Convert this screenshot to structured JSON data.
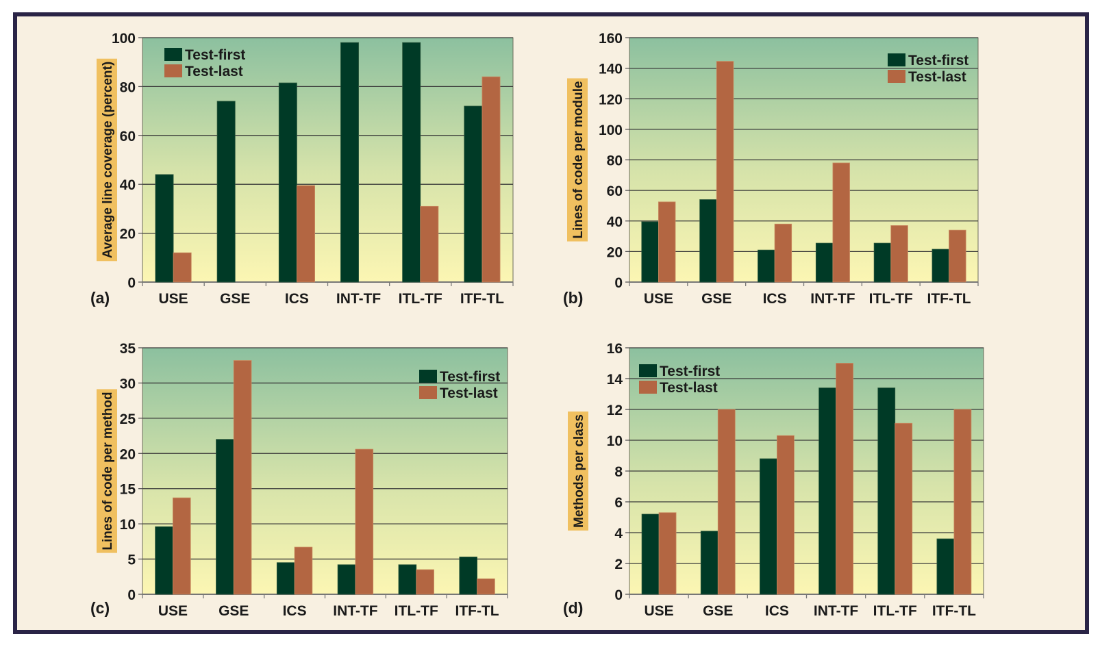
{
  "colors": {
    "test_first": "#003a26",
    "test_last": "#b36642",
    "plot_top": "#8cc09f",
    "plot_bottom": "#fcf6b3",
    "ylabel_bg": "#f0c060",
    "grid": "#3a3a3a"
  },
  "chart_data": [
    {
      "type": "bar",
      "panel": "(a)",
      "title": "",
      "xlabel": "",
      "ylabel": "Average line coverage (percent)",
      "categories": [
        "USE",
        "GSE",
        "ICS",
        "INT-TF",
        "ITL-TF",
        "ITF-TL"
      ],
      "ylim": [
        0,
        100
      ],
      "yticks": [
        0,
        20,
        40,
        60,
        80,
        100
      ],
      "grid": true,
      "legend_position": "top-left",
      "series": [
        {
          "name": "Test-first",
          "values": [
            44,
            74,
            81.5,
            98,
            98,
            72
          ]
        },
        {
          "name": "Test-last",
          "values": [
            12,
            null,
            39.5,
            null,
            31,
            84
          ]
        }
      ]
    },
    {
      "type": "bar",
      "panel": "(b)",
      "title": "",
      "xlabel": "",
      "ylabel": "Lines of code per module",
      "categories": [
        "USE",
        "GSE",
        "ICS",
        "INT-TF",
        "ITL-TF",
        "ITF-TL"
      ],
      "ylim": [
        0,
        160
      ],
      "yticks": [
        0,
        20,
        40,
        60,
        80,
        100,
        120,
        140,
        160
      ],
      "grid": true,
      "legend_position": "top-right",
      "series": [
        {
          "name": "Test-first",
          "values": [
            39.5,
            54,
            21,
            25.5,
            25.5,
            21.5
          ]
        },
        {
          "name": "Test-last",
          "values": [
            52.5,
            144.5,
            38,
            78,
            37,
            34
          ]
        }
      ]
    },
    {
      "type": "bar",
      "panel": "(c)",
      "title": "",
      "xlabel": "",
      "ylabel": "Lines of code per method",
      "categories": [
        "USE",
        "GSE",
        "ICS",
        "INT-TF",
        "ITL-TF",
        "ITF-TL"
      ],
      "ylim": [
        0,
        35
      ],
      "yticks": [
        0,
        5,
        10,
        15,
        20,
        25,
        30,
        35
      ],
      "grid": true,
      "legend_position": "top-right",
      "series": [
        {
          "name": "Test-first",
          "values": [
            9.6,
            22,
            4.5,
            4.2,
            4.2,
            5.3
          ]
        },
        {
          "name": "Test-last",
          "values": [
            13.7,
            33.2,
            6.7,
            20.6,
            3.5,
            2.2
          ]
        }
      ]
    },
    {
      "type": "bar",
      "panel": "(d)",
      "title": "",
      "xlabel": "",
      "ylabel": "Methods per class",
      "categories": [
        "USE",
        "GSE",
        "ICS",
        "INT-TF",
        "ITL-TF",
        "ITF-TL"
      ],
      "ylim": [
        0,
        16
      ],
      "yticks": [
        0,
        2,
        4,
        6,
        8,
        10,
        12,
        14,
        16
      ],
      "grid": true,
      "legend_position": "top-left",
      "series": [
        {
          "name": "Test-first",
          "values": [
            5.2,
            4.1,
            8.8,
            13.4,
            13.4,
            3.6
          ]
        },
        {
          "name": "Test-last",
          "values": [
            5.3,
            12,
            10.3,
            15,
            11.1,
            12
          ]
        }
      ]
    }
  ]
}
